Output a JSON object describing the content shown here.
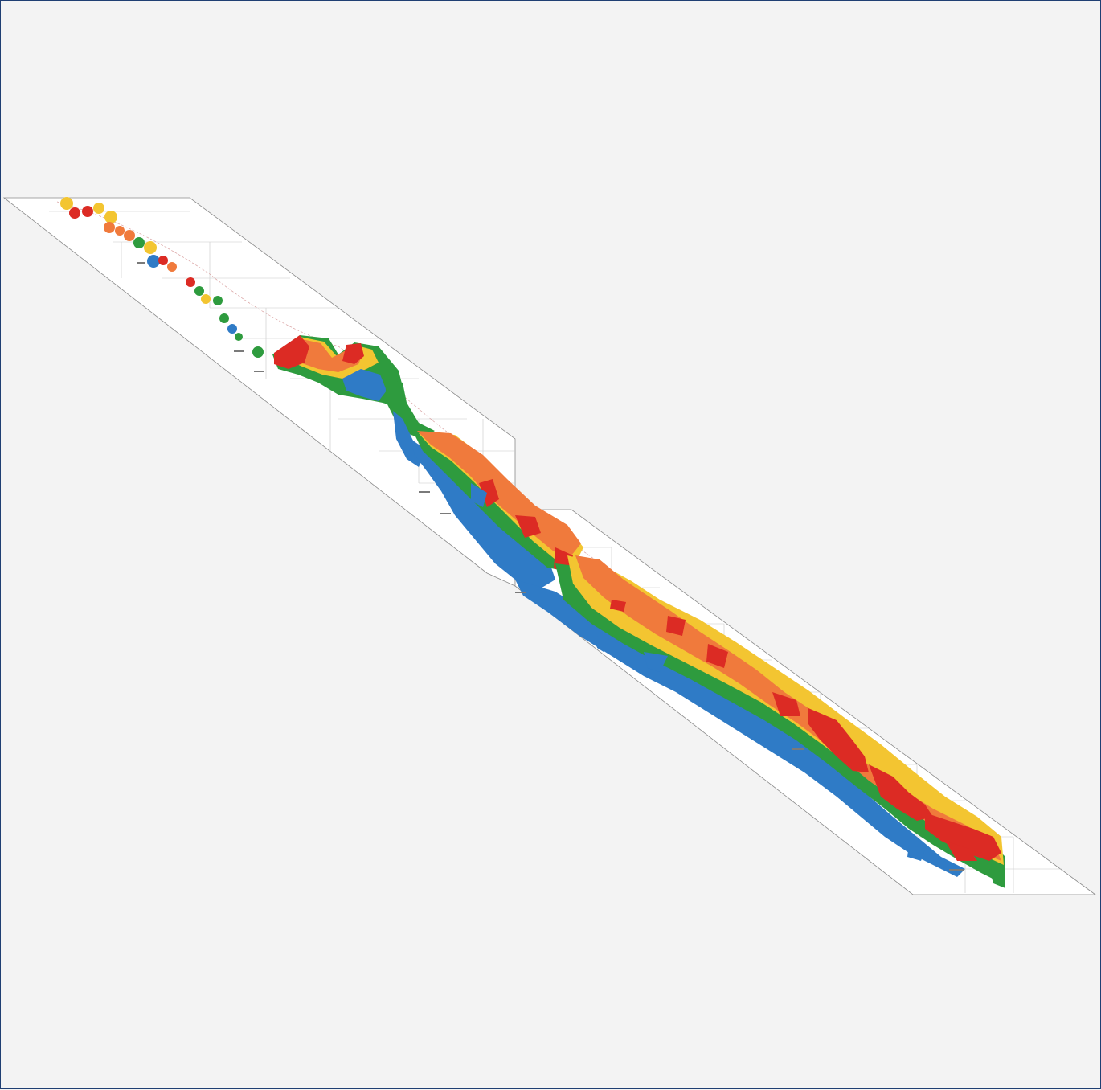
{
  "map": {
    "colors": {
      "background": "#f3f3f3",
      "frame": "#1f3f73",
      "sheet": "#ffffff",
      "blue": "#2f7bc6",
      "green": "#2e9b3e",
      "yellow": "#f3c531",
      "orange": "#f07a3c",
      "red": "#dc2b24"
    },
    "zones": [
      "blue",
      "green",
      "yellow",
      "orange",
      "red"
    ]
  }
}
